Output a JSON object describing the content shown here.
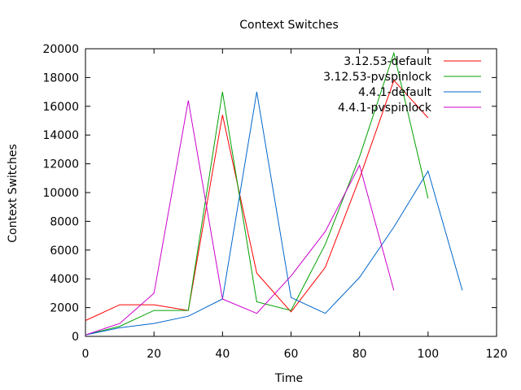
{
  "chart_data": {
    "type": "line",
    "title": "Context Switches",
    "xlabel": "Time",
    "ylabel": "Context Switches",
    "xlim": [
      0,
      120
    ],
    "ylim": [
      0,
      20000
    ],
    "x_ticks": [
      0,
      20,
      40,
      60,
      80,
      100,
      120
    ],
    "y_ticks": [
      0,
      2000,
      4000,
      6000,
      8000,
      10000,
      12000,
      14000,
      16000,
      18000,
      20000
    ],
    "grid": false,
    "legend_position": "top-right",
    "series": [
      {
        "name": "3.12.53-default",
        "color": "#ff0000",
        "x": [
          0,
          10,
          20,
          30,
          40,
          50,
          60,
          70,
          80,
          90,
          100
        ],
        "y": [
          1100,
          2200,
          2200,
          1800,
          15400,
          4400,
          1700,
          4800,
          11000,
          17800,
          15200
        ]
      },
      {
        "name": "3.12.53-pvspinlock",
        "color": "#00a000",
        "x": [
          0,
          10,
          20,
          30,
          40,
          50,
          60,
          70,
          80,
          90,
          100
        ],
        "y": [
          100,
          700,
          1800,
          1800,
          17000,
          2400,
          1800,
          6400,
          12500,
          19700,
          9600
        ]
      },
      {
        "name": "4.4.1-default",
        "color": "#0066cc",
        "x": [
          0,
          10,
          20,
          30,
          40,
          50,
          60,
          70,
          80,
          90,
          100,
          110
        ],
        "y": [
          100,
          600,
          900,
          1400,
          2600,
          17000,
          2700,
          1600,
          4100,
          7600,
          11500,
          3200
        ]
      },
      {
        "name": "4.4.1-pvspinlock",
        "color": "#cc00cc",
        "x": [
          0,
          10,
          20,
          30,
          40,
          50,
          60,
          70,
          80,
          90
        ],
        "y": [
          100,
          900,
          3000,
          16400,
          2600,
          1600,
          4200,
          7300,
          11900,
          3200
        ]
      }
    ]
  }
}
